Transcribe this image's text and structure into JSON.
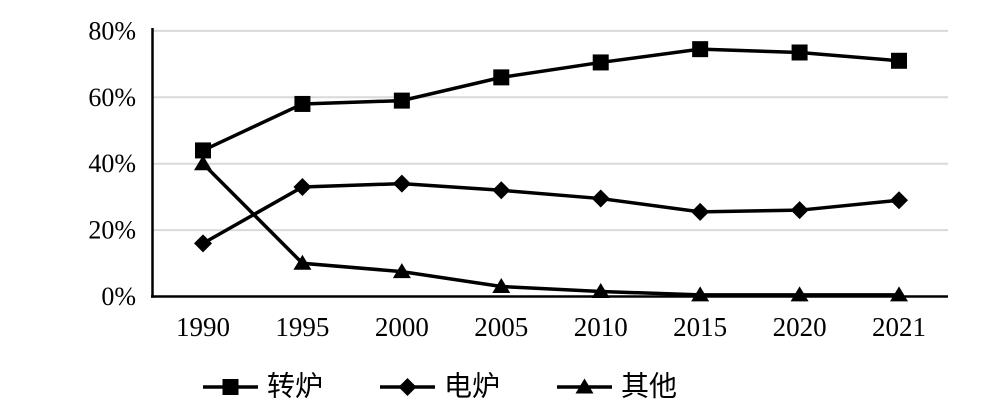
{
  "chart_data": {
    "type": "line",
    "title": "",
    "xlabel": "",
    "ylabel": "",
    "categories": [
      "1990",
      "1995",
      "2000",
      "2005",
      "2010",
      "2015",
      "2020",
      "2021"
    ],
    "series": [
      {
        "name": "转炉",
        "marker": "square",
        "values": [
          44,
          58,
          59,
          66,
          70.5,
          74.5,
          73.5,
          71
        ]
      },
      {
        "name": "电炉",
        "marker": "diamond",
        "values": [
          16,
          33,
          34,
          32,
          29.5,
          25.5,
          26,
          29
        ]
      },
      {
        "name": "其他",
        "marker": "triangle",
        "values": [
          40,
          10,
          7.5,
          3,
          1.5,
          0.5,
          0.5,
          0.5
        ]
      }
    ],
    "y_ticks": [
      "0%",
      "20%",
      "40%",
      "60%",
      "80%"
    ],
    "y_tick_values": [
      0,
      20,
      40,
      60,
      80
    ],
    "ylim": [
      0,
      80
    ],
    "grid": true,
    "legend_position": "bottom",
    "colors": {
      "line": "#000000",
      "gridline": "#d9d9d9",
      "axis": "#000000",
      "background": "#ffffff",
      "text": "#000000"
    }
  }
}
